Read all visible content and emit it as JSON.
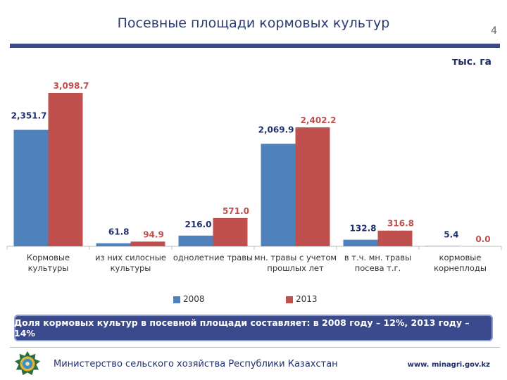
{
  "slide": {
    "title": "Посевные площади кормовых культур",
    "page_number": "4",
    "unit": "тыс. га"
  },
  "chart_data": {
    "type": "bar",
    "categories": [
      [
        "Кормовые",
        "культуры"
      ],
      [
        "из них силосные",
        "культуры"
      ],
      [
        "однолетние травы"
      ],
      [
        "мн. травы с учетом",
        "прошлых лет"
      ],
      [
        "в т.ч. мн. травы",
        "посева т.г."
      ],
      [
        "кормовые",
        "корнеплоды"
      ]
    ],
    "series": [
      {
        "name": "2008",
        "color": "#4f81bd",
        "values": [
          2351.7,
          61.8,
          216.0,
          2069.9,
          132.8,
          5.4
        ],
        "labels": [
          "2,351.7",
          "61.8",
          "216.0",
          "2,069.9",
          "132.8",
          "5.4"
        ]
      },
      {
        "name": "2013",
        "color": "#c0504d",
        "values": [
          3098.7,
          94.9,
          571.0,
          2402.2,
          316.8,
          0.0
        ],
        "labels": [
          "3,098.7",
          "94.9",
          "571.0",
          "2,402.2",
          "316.8",
          "0.0"
        ]
      }
    ],
    "legend": "bottom",
    "grid": false
  },
  "banner": {
    "text": "Доля кормовых культур в посевной площади составляет: в 2008 году – 12%, 2013 году – 14%"
  },
  "footer": {
    "ministry": "Министерство сельского хозяйства Республики Казахстан",
    "url": "www. minagri.gov.kz"
  },
  "colors": {
    "header": "#3b4a8c",
    "series_2008": "#4f81bd",
    "series_2013": "#c0504d",
    "label_2008": "#1f2f6b",
    "label_2013": "#c0504d"
  }
}
